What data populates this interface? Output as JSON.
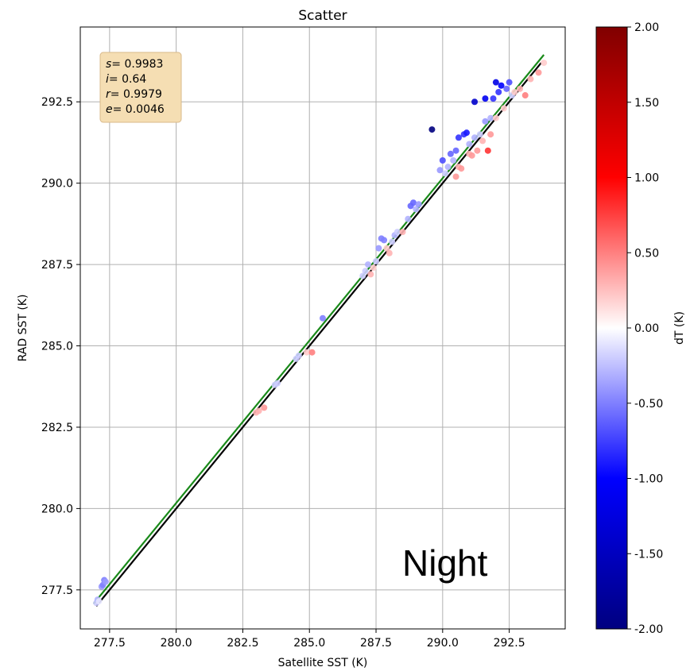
{
  "chart_data": {
    "type": "scatter",
    "title": "Scatter",
    "xlabel": "Satellite SST (K)",
    "ylabel": "RAD SST (K)",
    "xlim": [
      276.4,
      294.6
    ],
    "ylim": [
      276.3,
      294.8
    ],
    "xticks": [
      277.5,
      280.0,
      282.5,
      285.0,
      287.5,
      290.0,
      292.5
    ],
    "yticks": [
      277.5,
      280.0,
      282.5,
      285.0,
      287.5,
      290.0,
      292.5
    ],
    "grid": true,
    "stats_box": {
      "lines": [
        {
          "sym": "s",
          "val": "= 0.9983"
        },
        {
          "sym": "i",
          "val": "= 0.64"
        },
        {
          "sym": "r",
          "val": "= 0.9979"
        },
        {
          "sym": "e",
          "val": "= 0.0046"
        }
      ],
      "placement": "top-left",
      "bg_color": "#f5deb3"
    },
    "annotation": "Night",
    "lines": [
      {
        "kind": "one-to-one",
        "color": "#000000",
        "x": [
          277.0,
          293.7
        ],
        "y": [
          277.0,
          293.7
        ]
      },
      {
        "kind": "regression",
        "color": "#1a8a1a",
        "x": [
          276.9,
          293.8
        ],
        "y": [
          277.075,
          293.946
        ]
      }
    ],
    "colorbar": {
      "label": "dT (K)",
      "min": -2.0,
      "max": 2.0,
      "ticks": [
        "2.00",
        "1.50",
        "1.00",
        "0.50",
        "0.00",
        "-0.50",
        "-1.00",
        "-1.50",
        "-2.00"
      ],
      "colormap": "seismic"
    },
    "points": [
      {
        "x": 277.0,
        "y": 277.1,
        "dt": -0.2
      },
      {
        "x": 277.05,
        "y": 277.2,
        "dt": -0.3
      },
      {
        "x": 277.1,
        "y": 277.15,
        "dt": -0.1
      },
      {
        "x": 277.2,
        "y": 277.6,
        "dt": -0.4
      },
      {
        "x": 277.25,
        "y": 277.65,
        "dt": -0.5
      },
      {
        "x": 277.3,
        "y": 277.8,
        "dt": -0.5
      },
      {
        "x": 277.35,
        "y": 277.75,
        "dt": -0.4
      },
      {
        "x": 283.0,
        "y": 282.95,
        "dt": 0.3
      },
      {
        "x": 283.1,
        "y": 283.0,
        "dt": 0.3
      },
      {
        "x": 283.3,
        "y": 283.1,
        "dt": 0.4
      },
      {
        "x": 283.7,
        "y": 283.8,
        "dt": -0.2
      },
      {
        "x": 283.8,
        "y": 283.85,
        "dt": -0.2
      },
      {
        "x": 284.5,
        "y": 284.6,
        "dt": -0.2
      },
      {
        "x": 284.6,
        "y": 284.7,
        "dt": -0.2
      },
      {
        "x": 284.9,
        "y": 284.8,
        "dt": 0.2
      },
      {
        "x": 285.1,
        "y": 284.8,
        "dt": 0.5
      },
      {
        "x": 285.5,
        "y": 285.85,
        "dt": -0.5
      },
      {
        "x": 287.0,
        "y": 287.15,
        "dt": -0.2
      },
      {
        "x": 287.1,
        "y": 287.3,
        "dt": -0.2
      },
      {
        "x": 287.2,
        "y": 287.5,
        "dt": -0.3
      },
      {
        "x": 287.3,
        "y": 287.2,
        "dt": 0.3
      },
      {
        "x": 287.4,
        "y": 287.4,
        "dt": 0.2
      },
      {
        "x": 287.5,
        "y": 287.6,
        "dt": -0.2
      },
      {
        "x": 287.6,
        "y": 288.0,
        "dt": -0.4
      },
      {
        "x": 287.7,
        "y": 288.3,
        "dt": -0.5
      },
      {
        "x": 287.8,
        "y": 288.25,
        "dt": -0.5
      },
      {
        "x": 287.9,
        "y": 288.0,
        "dt": 0.2
      },
      {
        "x": 288.0,
        "y": 287.85,
        "dt": 0.3
      },
      {
        "x": 288.1,
        "y": 288.2,
        "dt": -0.2
      },
      {
        "x": 288.2,
        "y": 288.4,
        "dt": -0.3
      },
      {
        "x": 288.3,
        "y": 288.5,
        "dt": -0.2
      },
      {
        "x": 288.5,
        "y": 288.5,
        "dt": 0.3
      },
      {
        "x": 288.7,
        "y": 288.9,
        "dt": -0.3
      },
      {
        "x": 288.8,
        "y": 289.3,
        "dt": -0.6
      },
      {
        "x": 288.9,
        "y": 289.4,
        "dt": -0.6
      },
      {
        "x": 289.0,
        "y": 289.2,
        "dt": -0.3
      },
      {
        "x": 289.1,
        "y": 289.35,
        "dt": -0.4
      },
      {
        "x": 289.6,
        "y": 291.65,
        "dt": -2.0
      },
      {
        "x": 289.9,
        "y": 290.4,
        "dt": -0.4
      },
      {
        "x": 290.0,
        "y": 290.7,
        "dt": -0.7
      },
      {
        "x": 290.1,
        "y": 290.3,
        "dt": -0.2
      },
      {
        "x": 290.2,
        "y": 290.5,
        "dt": -0.3
      },
      {
        "x": 290.3,
        "y": 290.9,
        "dt": -0.6
      },
      {
        "x": 290.4,
        "y": 290.7,
        "dt": -0.3
      },
      {
        "x": 290.5,
        "y": 291.0,
        "dt": -0.6
      },
      {
        "x": 290.5,
        "y": 290.2,
        "dt": 0.4
      },
      {
        "x": 290.6,
        "y": 291.4,
        "dt": -0.8
      },
      {
        "x": 290.6,
        "y": 290.5,
        "dt": 0.3
      },
      {
        "x": 290.7,
        "y": 290.45,
        "dt": 0.4
      },
      {
        "x": 290.8,
        "y": 291.5,
        "dt": -0.8
      },
      {
        "x": 290.9,
        "y": 291.55,
        "dt": -0.9
      },
      {
        "x": 291.0,
        "y": 291.2,
        "dt": -0.3
      },
      {
        "x": 291.0,
        "y": 290.9,
        "dt": 0.3
      },
      {
        "x": 291.1,
        "y": 290.85,
        "dt": 0.4
      },
      {
        "x": 291.2,
        "y": 291.4,
        "dt": -0.3
      },
      {
        "x": 291.2,
        "y": 292.5,
        "dt": -1.4
      },
      {
        "x": 291.3,
        "y": 291.0,
        "dt": 0.4
      },
      {
        "x": 291.4,
        "y": 291.5,
        "dt": -0.2
      },
      {
        "x": 291.5,
        "y": 291.3,
        "dt": 0.3
      },
      {
        "x": 291.6,
        "y": 291.9,
        "dt": -0.4
      },
      {
        "x": 291.6,
        "y": 292.6,
        "dt": -1.1
      },
      {
        "x": 291.7,
        "y": 291.0,
        "dt": 0.8
      },
      {
        "x": 291.8,
        "y": 291.5,
        "dt": 0.4
      },
      {
        "x": 291.8,
        "y": 292.0,
        "dt": -0.3
      },
      {
        "x": 291.9,
        "y": 292.6,
        "dt": -0.8
      },
      {
        "x": 292.0,
        "y": 293.1,
        "dt": -1.2
      },
      {
        "x": 292.0,
        "y": 292.0,
        "dt": 0.2
      },
      {
        "x": 292.1,
        "y": 292.8,
        "dt": -0.8
      },
      {
        "x": 292.2,
        "y": 293.0,
        "dt": -1.0
      },
      {
        "x": 292.3,
        "y": 292.3,
        "dt": 0.2
      },
      {
        "x": 292.4,
        "y": 292.9,
        "dt": -0.6
      },
      {
        "x": 292.5,
        "y": 293.1,
        "dt": -0.7
      },
      {
        "x": 292.6,
        "y": 292.7,
        "dt": -0.2
      },
      {
        "x": 292.7,
        "y": 292.8,
        "dt": 0.2
      },
      {
        "x": 292.9,
        "y": 292.9,
        "dt": 0.3
      },
      {
        "x": 293.1,
        "y": 292.7,
        "dt": 0.5
      },
      {
        "x": 293.3,
        "y": 293.2,
        "dt": 0.3
      },
      {
        "x": 293.6,
        "y": 293.4,
        "dt": 0.4
      },
      {
        "x": 293.8,
        "y": 293.7,
        "dt": 0.2
      }
    ]
  }
}
